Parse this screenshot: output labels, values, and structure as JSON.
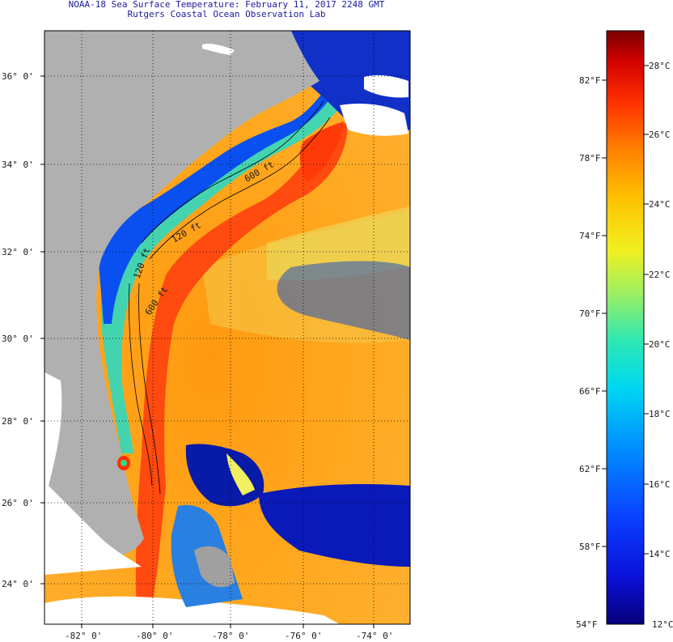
{
  "title": {
    "line1": "NOAA-18 Sea Surface Temperature:  February 11, 2017 2248 GMT",
    "line2": "Rutgers Coastal Ocean Observation Lab"
  },
  "map": {
    "lat_labels": [
      "36° 0'",
      "34° 0'",
      "32° 0'",
      "30° 0'",
      "28° 0'",
      "26° 0'",
      "24° 0'"
    ],
    "lon_labels": [
      "-82° 0'",
      "-80° 0'",
      "-78° 0'",
      "-76° 0'",
      "-74° 0'"
    ],
    "contour_labels": [
      "120 ft",
      "600 ft",
      "120 ft",
      "600 ft"
    ]
  },
  "colorbar": {
    "fahrenheit": [
      "82°F",
      "78°F",
      "74°F",
      "70°F",
      "66°F",
      "62°F",
      "58°F",
      "54°F"
    ],
    "celsius": [
      "28°C",
      "26°C",
      "24°C",
      "22°C",
      "20°C",
      "18°C",
      "16°C",
      "14°C",
      "12°C"
    ],
    "colors": [
      "#08007a",
      "#0a10d8",
      "#0a40ff",
      "#0090ff",
      "#00d8f0",
      "#30e8b0",
      "#a0f060",
      "#f0f020",
      "#ffc000",
      "#ff8000",
      "#ff3000",
      "#d00000",
      "#7a0000"
    ]
  }
}
